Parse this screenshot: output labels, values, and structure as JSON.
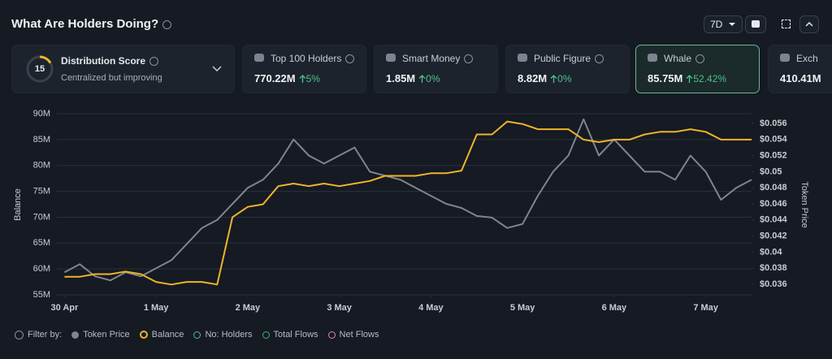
{
  "header": {
    "title": "What Are Holders Doing?",
    "period": "7D"
  },
  "score": {
    "value": "15",
    "title": "Distribution Score",
    "subtitle": "Centralized but improving"
  },
  "cards": [
    {
      "label": "Top 100 Holders",
      "value": "770.22M",
      "change": "5%"
    },
    {
      "label": "Smart Money",
      "value": "1.85M",
      "change": "0%"
    },
    {
      "label": "Public Figure",
      "value": "8.82M",
      "change": "0%"
    },
    {
      "label": "Whale",
      "value": "85.75M",
      "change": "52.42%"
    },
    {
      "label": "Exch",
      "value": "410.41M"
    }
  ],
  "filters": {
    "label": "Filter by:",
    "extra": [
      {
        "name": "No: Holders",
        "color": "#56b6a8"
      },
      {
        "name": "Total Flows",
        "color": "#3fae7a"
      },
      {
        "name": "Net Flows",
        "color": "#d98bb0"
      }
    ]
  },
  "chart_data": {
    "type": "line",
    "ylabel": "Balance",
    "y2label": "Token Price",
    "xlim": [
      -0.5,
      45
    ],
    "xticks": [
      {
        "value": 0,
        "label": "30 Apr"
      },
      {
        "value": 6,
        "label": "1 May"
      },
      {
        "value": 12,
        "label": "2 May"
      },
      {
        "value": 18,
        "label": "3 May"
      },
      {
        "value": 24,
        "label": "4 May"
      },
      {
        "value": 30,
        "label": "5 May"
      },
      {
        "value": 36,
        "label": "6 May"
      },
      {
        "value": 42,
        "label": "7 May"
      }
    ],
    "ylim": [
      55000000,
      90000000
    ],
    "yticks": [
      {
        "value": 55000000,
        "label": "55M"
      },
      {
        "value": 60000000,
        "label": "60M"
      },
      {
        "value": 65000000,
        "label": "65M"
      },
      {
        "value": 70000000,
        "label": "70M"
      },
      {
        "value": 75000000,
        "label": "75M"
      },
      {
        "value": 80000000,
        "label": "80M"
      },
      {
        "value": 85000000,
        "label": "85M"
      },
      {
        "value": 90000000,
        "label": "90M"
      }
    ],
    "y2lim": [
      0.0347,
      0.0572
    ],
    "y2ticks": [
      {
        "value": 0.036,
        "label": "$0.036"
      },
      {
        "value": 0.038,
        "label": "$0.038"
      },
      {
        "value": 0.04,
        "label": "$0.04"
      },
      {
        "value": 0.042,
        "label": "$0.042"
      },
      {
        "value": 0.044,
        "label": "$0.044"
      },
      {
        "value": 0.046,
        "label": "$0.046"
      },
      {
        "value": 0.048,
        "label": "$0.048"
      },
      {
        "value": 0.05,
        "label": "$0.05"
      },
      {
        "value": 0.052,
        "label": "$0.052"
      },
      {
        "value": 0.054,
        "label": "$0.054"
      },
      {
        "value": 0.056,
        "label": "$0.056"
      }
    ],
    "grid": true,
    "series": [
      {
        "name": "Token Price",
        "color": "#7f858f",
        "axis": "y2",
        "values": [
          0.0375,
          0.0385,
          0.037,
          0.0365,
          0.0375,
          0.037,
          0.038,
          0.039,
          0.041,
          0.043,
          0.044,
          0.046,
          0.048,
          0.049,
          0.051,
          0.054,
          0.052,
          0.051,
          0.052,
          0.053,
          0.05,
          0.0495,
          0.049,
          0.048,
          0.047,
          0.046,
          0.0455,
          0.0445,
          0.0443,
          0.043,
          0.0435,
          0.047,
          0.05,
          0.052,
          0.0565,
          0.052,
          0.054,
          0.052,
          0.05,
          0.05,
          0.049,
          0.052,
          0.05,
          0.0465,
          0.048,
          0.049
        ]
      },
      {
        "name": "Balance",
        "color": "#f0b429",
        "values": [
          58500000,
          58500000,
          59000000,
          59000000,
          59500000,
          59000000,
          57500000,
          57000000,
          57500000,
          57500000,
          57000000,
          70000000,
          72000000,
          72500000,
          76000000,
          76500000,
          76000000,
          76500000,
          76000000,
          76500000,
          77000000,
          78000000,
          78000000,
          78000000,
          78500000,
          78500000,
          79000000,
          86000000,
          86000000,
          88500000,
          88000000,
          87000000,
          87000000,
          87000000,
          85000000,
          84500000,
          85000000,
          85000000,
          86000000,
          86500000,
          86500000,
          87000000,
          86500000,
          85000000,
          85000000,
          85000000
        ]
      }
    ]
  }
}
